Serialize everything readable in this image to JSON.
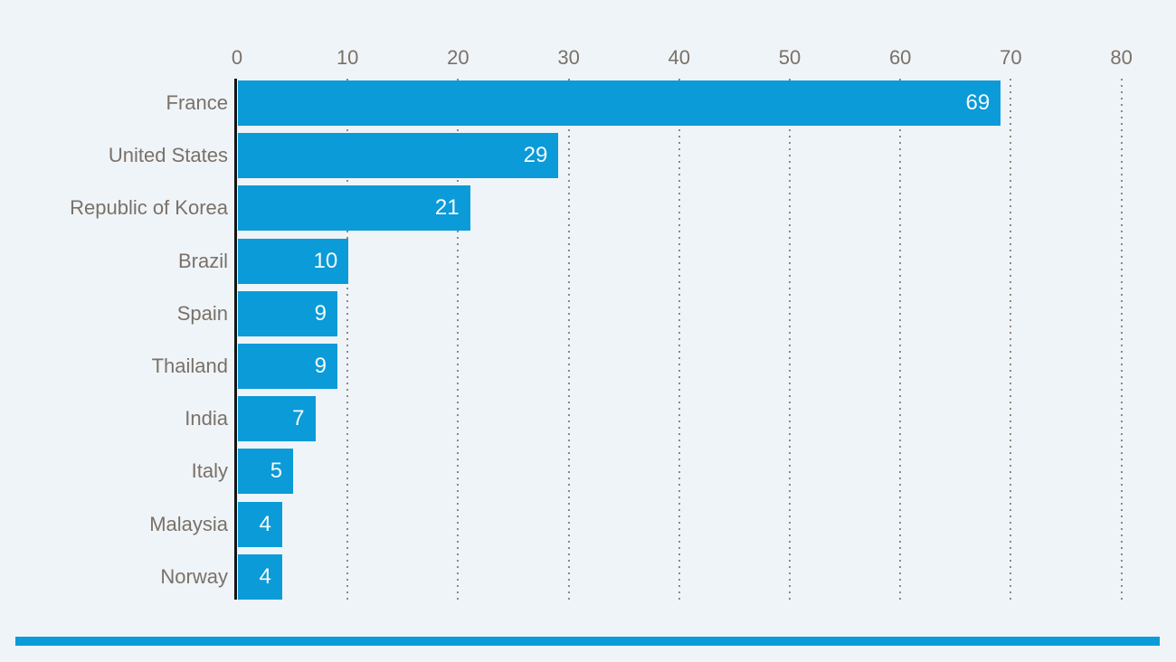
{
  "page": {
    "background_color": "#eff4f8"
  },
  "chart_data": {
    "type": "bar",
    "orientation": "horizontal",
    "title": "",
    "xlabel": "",
    "ylabel": "",
    "categories": [
      "France",
      "United States",
      "Republic of Korea",
      "Brazil",
      "Spain",
      "Thailand",
      "India",
      "Italy",
      "Malaysia",
      "Norway"
    ],
    "values": [
      69,
      29,
      21,
      10,
      9,
      9,
      7,
      5,
      4,
      4
    ],
    "value_labels": [
      "69",
      "29",
      "21",
      "10",
      "9",
      "9",
      "7",
      "5",
      "4",
      "4"
    ],
    "x_ticks": [
      "0",
      "10",
      "20",
      "30",
      "40",
      "50",
      "60",
      "70",
      "80"
    ],
    "xlim": [
      0,
      80
    ],
    "axis_position": "top",
    "grid": "dotted-vertical",
    "legend": "none",
    "bar_color": "#0a9bd8",
    "value_label_color": "#f7fafc",
    "axis_text_color": "#7a7168",
    "axis_line_color": "#141414",
    "gridline_color": "#8f8880"
  },
  "footer": {
    "accent_bar_color": "#0a9bd8"
  }
}
